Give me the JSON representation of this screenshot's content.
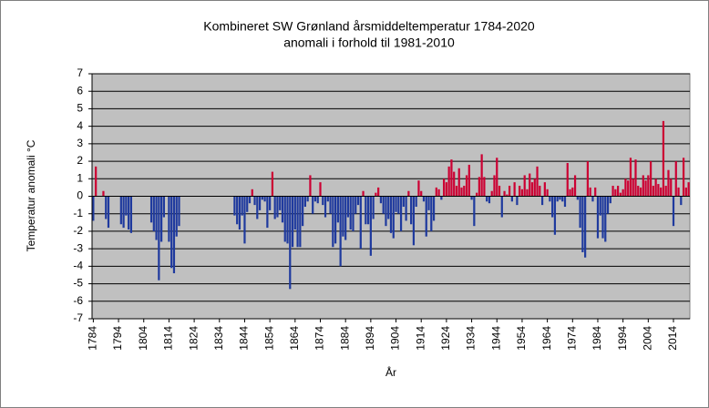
{
  "chart_data": {
    "type": "bar",
    "title": [
      "Kombineret SW Grønland årsmiddeltemperatur 1784-2020",
      "anomali i forhold til 1981-2010"
    ],
    "xlabel": "År",
    "ylabel": "Temperatur anomali °C",
    "positive_color": "#cc0033",
    "negative_color": "#1f3a9e",
    "background": "#c0c0c0",
    "grid": true,
    "xlim": [
      1783.5,
      2020.5
    ],
    "xticks": [
      1784,
      1794,
      1804,
      1814,
      1824,
      1834,
      1844,
      1854,
      1864,
      1874,
      1884,
      1894,
      1904,
      1914,
      1924,
      1934,
      1944,
      1954,
      1964,
      1974,
      1984,
      1994,
      2004,
      2014
    ],
    "ylim": [
      -7,
      7
    ],
    "yticks": [
      -7,
      -6,
      -5,
      -4,
      -3,
      -2,
      -1,
      0,
      1,
      2,
      3,
      4,
      5,
      6,
      7
    ],
    "x": [
      1784,
      1785,
      1786,
      1787,
      1788,
      1789,
      1790,
      1791,
      1792,
      1793,
      1794,
      1795,
      1796,
      1797,
      1798,
      1799,
      1800,
      1801,
      1802,
      1803,
      1804,
      1805,
      1806,
      1807,
      1808,
      1809,
      1810,
      1811,
      1812,
      1813,
      1814,
      1815,
      1816,
      1817,
      1818,
      1819,
      1820,
      1821,
      1822,
      1823,
      1824,
      1825,
      1826,
      1827,
      1828,
      1829,
      1830,
      1831,
      1832,
      1833,
      1834,
      1835,
      1836,
      1837,
      1838,
      1839,
      1840,
      1841,
      1842,
      1843,
      1844,
      1845,
      1846,
      1847,
      1848,
      1849,
      1850,
      1851,
      1852,
      1853,
      1854,
      1855,
      1856,
      1857,
      1858,
      1859,
      1860,
      1861,
      1862,
      1863,
      1864,
      1865,
      1866,
      1867,
      1868,
      1869,
      1870,
      1871,
      1872,
      1873,
      1874,
      1875,
      1876,
      1877,
      1878,
      1879,
      1880,
      1881,
      1882,
      1883,
      1884,
      1885,
      1886,
      1887,
      1888,
      1889,
      1890,
      1891,
      1892,
      1893,
      1894,
      1895,
      1896,
      1897,
      1898,
      1899,
      1900,
      1901,
      1902,
      1903,
      1904,
      1905,
      1906,
      1907,
      1908,
      1909,
      1910,
      1911,
      1912,
      1913,
      1914,
      1915,
      1916,
      1917,
      1918,
      1919,
      1920,
      1921,
      1922,
      1923,
      1924,
      1925,
      1926,
      1927,
      1928,
      1929,
      1930,
      1931,
      1932,
      1933,
      1934,
      1935,
      1936,
      1937,
      1938,
      1939,
      1940,
      1941,
      1942,
      1943,
      1944,
      1945,
      1946,
      1947,
      1948,
      1949,
      1950,
      1951,
      1952,
      1953,
      1954,
      1955,
      1956,
      1957,
      1958,
      1959,
      1960,
      1961,
      1962,
      1963,
      1964,
      1965,
      1966,
      1967,
      1968,
      1969,
      1970,
      1971,
      1972,
      1973,
      1974,
      1975,
      1976,
      1977,
      1978,
      1979,
      1980,
      1981,
      1982,
      1983,
      1984,
      1985,
      1986,
      1987,
      1988,
      1989,
      1990,
      1991,
      1992,
      1993,
      1994,
      1995,
      1996,
      1997,
      1998,
      1999,
      2000,
      2001,
      2002,
      2003,
      2004,
      2005,
      2006,
      2007,
      2008,
      2009,
      2010,
      2011,
      2012,
      2013,
      2014,
      2015,
      2016,
      2017,
      2018,
      2019,
      2020
    ],
    "values": [
      -1.4,
      1.7,
      null,
      null,
      0.3,
      -1.3,
      -1.8,
      null,
      null,
      null,
      null,
      -1.6,
      -1.8,
      -1.1,
      -1.9,
      -2.1,
      null,
      null,
      null,
      null,
      null,
      null,
      null,
      -1.5,
      -2.0,
      -2.5,
      -4.8,
      -2.6,
      -1.2,
      null,
      -2.6,
      -4.1,
      -4.4,
      -2.3,
      -1.7,
      null,
      null,
      null,
      null,
      null,
      null,
      null,
      null,
      null,
      null,
      null,
      null,
      null,
      null,
      null,
      null,
      null,
      null,
      null,
      null,
      null,
      -1.1,
      -1.6,
      -1.9,
      -1.1,
      -2.7,
      -0.9,
      -0.4,
      0.4,
      -0.5,
      -1.3,
      -0.8,
      -0.2,
      -0.3,
      -1.8,
      -0.8,
      1.4,
      -1.3,
      -1.2,
      -0.8,
      -1.5,
      -2.6,
      -2.7,
      -5.3,
      -2.9,
      -1.9,
      -2.9,
      -2.9,
      -1.7,
      -0.6,
      -0.3,
      1.2,
      -1.0,
      -0.3,
      -0.4,
      0.8,
      -0.5,
      -1.2,
      -0.3,
      -1.0,
      -2.9,
      -2.7,
      -1.5,
      -4.0,
      -2.3,
      -2.5,
      -1.2,
      -1.9,
      -2.0,
      -1.0,
      -0.5,
      -3.0,
      0.3,
      -1.6,
      -1.6,
      -3.4,
      -1.3,
      0.2,
      0.5,
      -0.4,
      -1.0,
      -1.7,
      -1.3,
      -2.1,
      -2.4,
      -0.9,
      -1.0,
      -2.0,
      -0.6,
      -1.4,
      0.3,
      -1.6,
      -2.8,
      -0.6,
      0.9,
      0.3,
      -0.3,
      -2.3,
      -0.8,
      -2.0,
      -1.4,
      0.5,
      0.4,
      -0.2,
      1.0,
      0.8,
      1.7,
      2.1,
      1.4,
      0.6,
      1.6,
      0.5,
      0.6,
      1.2,
      1.8,
      -0.2,
      -1.7,
      0.2,
      1.1,
      2.4,
      1.1,
      -0.3,
      -0.4,
      0.3,
      1.2,
      2.2,
      0.6,
      -1.2,
      0.3,
      0.1,
      0.6,
      -0.3,
      0.8,
      -0.5,
      0.6,
      0.4,
      1.2,
      0.4,
      1.3,
      0.8,
      1.0,
      1.7,
      0.6,
      -0.5,
      0.8,
      0.4,
      -0.3,
      -1.2,
      -2.2,
      -0.3,
      -0.2,
      -0.3,
      -0.6,
      1.9,
      0.4,
      0.5,
      1.2,
      -0.2,
      -1.8,
      -3.2,
      -3.5,
      2.0,
      0.5,
      -0.3,
      0.5,
      -2.4,
      -1.1,
      -2.4,
      -2.6,
      -1.0,
      -0.4,
      0.6,
      0.4,
      0.6,
      0.2,
      0.4,
      1.0,
      0.9,
      2.2,
      1.0,
      2.1,
      0.6,
      0.5,
      1.2,
      0.9,
      1.2,
      2.0,
      0.6,
      1.0,
      0.7,
      0.5,
      4.3,
      0.6,
      1.5,
      1.0,
      -1.7,
      2.0,
      0.5,
      -0.5,
      2.2,
      0.5,
      0.8
    ]
  }
}
